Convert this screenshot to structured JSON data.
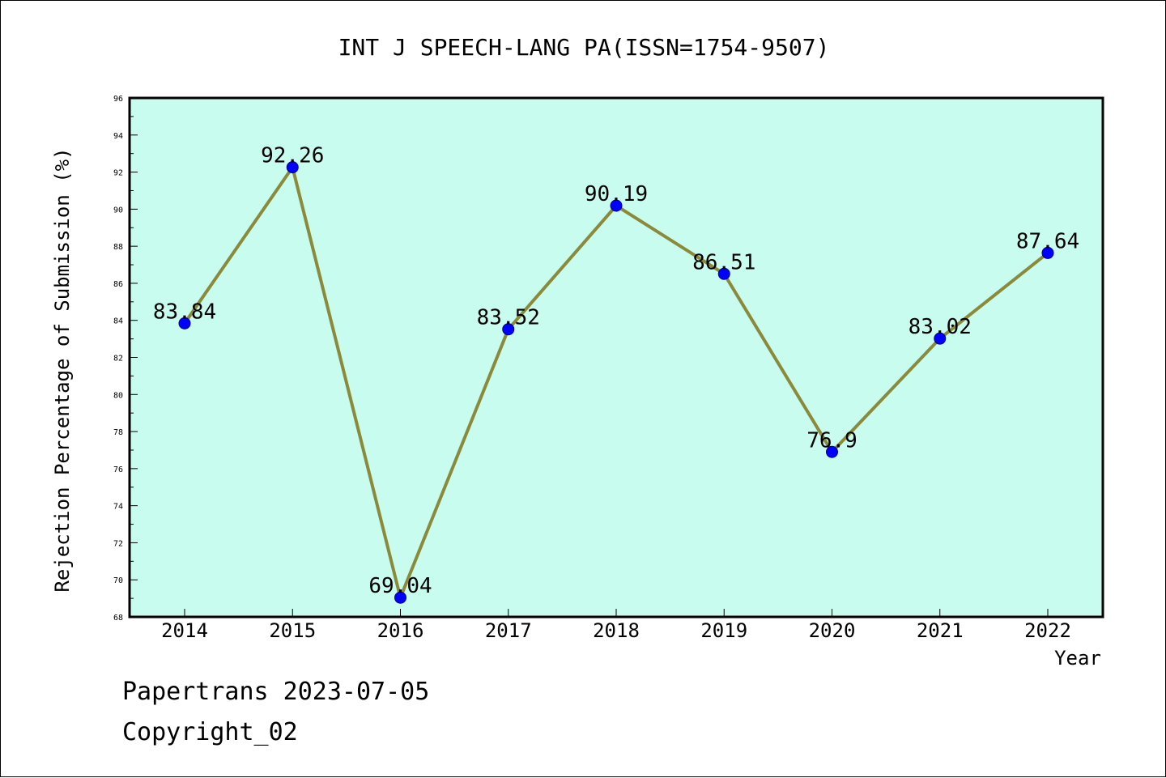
{
  "chart_data": {
    "type": "line",
    "title": "INT J SPEECH-LANG PA(ISSN=1754-9507)",
    "xlabel": "Year",
    "ylabel": "Rejection Percentage of Submission (%)",
    "categories": [
      "2014",
      "2015",
      "2016",
      "2017",
      "2018",
      "2019",
      "2020",
      "2021",
      "2022"
    ],
    "values": [
      83.84,
      92.26,
      69.04,
      83.52,
      90.19,
      86.51,
      76.9,
      83.02,
      87.64
    ],
    "data_labels": [
      "83.84",
      "92.26",
      "69.04",
      "83.52",
      "90.19",
      "86.51",
      "76.9",
      "83.02",
      "87.64"
    ],
    "ylim": [
      68,
      96
    ],
    "yticks": [
      "68",
      "70",
      "72",
      "74",
      "76",
      "78",
      "80",
      "82",
      "84",
      "86",
      "88",
      "90",
      "92",
      "94",
      "96"
    ],
    "grid": false,
    "legend": "none"
  },
  "footer": {
    "line1": "Papertrans 2023-07-05",
    "line2": "Copyright_02"
  },
  "colors": {
    "plot_background": "#c8fcee",
    "line": "#8b8a3a",
    "marker": "#0000ff",
    "axes": "#000000"
  }
}
